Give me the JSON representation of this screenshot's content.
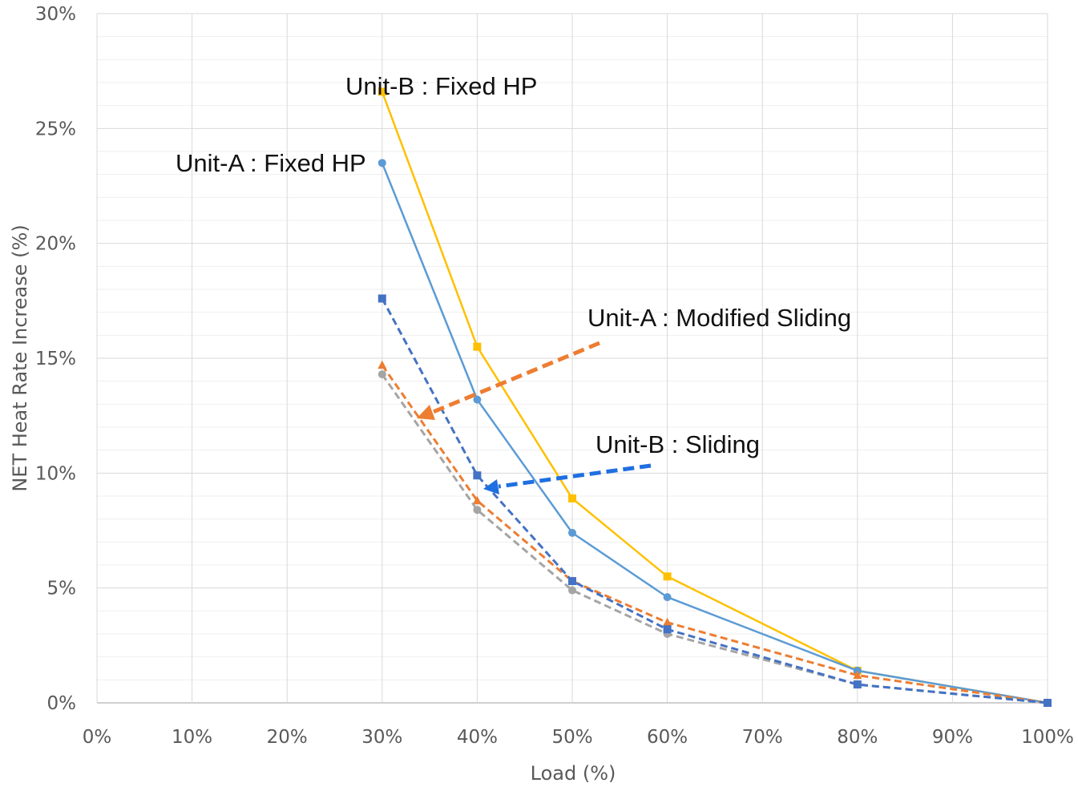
{
  "chart_data": {
    "type": "line",
    "title": "",
    "xlabel": "Load (%)",
    "ylabel": "NET Heat Rate Increase (%)",
    "xlim": [
      0,
      100
    ],
    "ylim": [
      0,
      30
    ],
    "x_ticks": [
      0,
      10,
      20,
      30,
      40,
      50,
      60,
      70,
      80,
      90,
      100
    ],
    "x_tick_labels": [
      "0%",
      "10%",
      "20%",
      "30%",
      "40%",
      "50%",
      "60%",
      "70%",
      "80%",
      "90%",
      "100%"
    ],
    "y_ticks": [
      0,
      5,
      10,
      15,
      20,
      25,
      30
    ],
    "y_tick_labels": [
      "0%",
      "5%",
      "10%",
      "15%",
      "20%",
      "25%",
      "30%"
    ],
    "grid": {
      "major": true,
      "minor": true
    },
    "legend": "none",
    "series": [
      {
        "x": [
          30,
          40,
          50,
          60,
          80,
          100
        ],
        "values": [
          26.6,
          15.5,
          8.9,
          5.5,
          1.4,
          0.0
        ],
        "color": "#FFC000",
        "style": "solid",
        "marker": "square"
      },
      {
        "x": [
          30,
          40,
          50,
          60,
          80,
          100
        ],
        "values": [
          23.5,
          13.2,
          7.4,
          4.6,
          1.4,
          0.0
        ],
        "color": "#5B9BD5",
        "style": "solid",
        "marker": "circle"
      },
      {
        "x": [
          30,
          40,
          50,
          60,
          80,
          100
        ],
        "values": [
          14.7,
          8.8,
          5.3,
          3.5,
          1.2,
          0.0
        ],
        "color": "#ED7D31",
        "style": "dashed",
        "marker": "triangle"
      },
      {
        "x": [
          30,
          40,
          50,
          60,
          80,
          100
        ],
        "values": [
          14.3,
          8.4,
          4.9,
          3.0,
          0.8,
          0.0
        ],
        "color": "#A5A5A5",
        "style": "dashed",
        "marker": "circle"
      },
      {
        "x": [
          30,
          40,
          50,
          60,
          80,
          100
        ],
        "values": [
          17.6,
          9.9,
          5.3,
          3.2,
          0.8,
          0.0
        ],
        "color": "#4472C4",
        "style": "dashed",
        "marker": "square"
      }
    ],
    "annotations": [
      {
        "text": "Unit-B : Fixed HP"
      },
      {
        "text": "Unit-A : Fixed HP"
      },
      {
        "text": "Unit-A : Modified Sliding",
        "arrow_color": "#ED7D31"
      },
      {
        "text": "Unit-B : Sliding",
        "arrow_color": "#1F6FE0"
      }
    ]
  }
}
